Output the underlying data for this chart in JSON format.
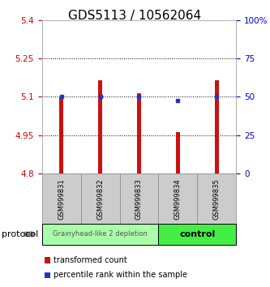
{
  "title": "GDS5113 / 10562064",
  "samples": [
    "GSM999831",
    "GSM999832",
    "GSM999833",
    "GSM999834",
    "GSM999835"
  ],
  "red_bar_bottom": 4.8,
  "red_bar_tops": [
    5.1,
    5.165,
    5.115,
    4.963,
    5.165
  ],
  "blue_marker_values": [
    5.1,
    5.1,
    5.1,
    5.085,
    5.1
  ],
  "ylim": [
    4.8,
    5.4
  ],
  "yticks_left": [
    4.8,
    4.95,
    5.1,
    5.25,
    5.4
  ],
  "yticks_right": [
    0,
    25,
    50,
    75,
    100
  ],
  "ytick_labels_left": [
    "4.8",
    "4.95",
    "5.1",
    "5.25",
    "5.4"
  ],
  "ytick_labels_right": [
    "0",
    "25",
    "50",
    "75",
    "100%"
  ],
  "hlines": [
    4.95,
    5.1,
    5.25
  ],
  "groups": [
    {
      "label": "Grainyhead-like 2 depletion",
      "n_samples": 3,
      "color": "#aaffaa",
      "border": "#000000"
    },
    {
      "label": "control",
      "n_samples": 2,
      "color": "#44ee44",
      "border": "#000000"
    }
  ],
  "bar_color": "#cc1111",
  "blue_color": "#2233cc",
  "bar_width": 0.12,
  "background_color": "#ffffff",
  "plot_bg": "#ffffff",
  "left_tick_color": "#cc0000",
  "right_tick_color": "#0000cc",
  "legend_red_label": "transformed count",
  "legend_blue_label": "percentile rank within the sample",
  "protocol_label": "protocol",
  "sample_box_color": "#cccccc",
  "sample_box_border": "#888888",
  "title_fontsize": 11,
  "tick_fontsize": 7.5,
  "sample_fontsize": 6,
  "group_fontsize_0": 6,
  "group_fontsize_1": 8,
  "legend_fontsize": 7,
  "protocol_fontsize": 8
}
